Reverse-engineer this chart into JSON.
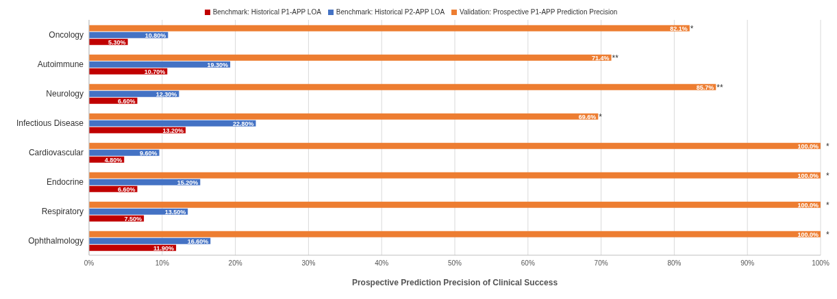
{
  "chart_data": {
    "type": "bar",
    "orientation": "horizontal",
    "xlabel": "Prospective Prediction Precision of Clinical Success",
    "categories": [
      "Oncology",
      "Autoimmune",
      "Neurology",
      "Infectious Disease",
      "Cardiovascular",
      "Endocrine",
      "Respiratory",
      "Ophthalmology"
    ],
    "series": [
      {
        "name": "Validation: Prospective P1-APP Prediction Precision",
        "color": "#ed7d31",
        "values": [
          82.1,
          71.4,
          85.7,
          69.6,
          100,
          100,
          100,
          100
        ],
        "value_labels": [
          "82.1%",
          "71.4%",
          "85.7%",
          "69.6%",
          "100.0%",
          "100.0%",
          "100.0%",
          "100.0%"
        ]
      },
      {
        "name": "Benchmark: Historical P2-APP LOA",
        "color": "#4472c4",
        "values": [
          10.8,
          19.3,
          12.3,
          22.8,
          9.6,
          15.2,
          13.5,
          16.6
        ],
        "value_labels": [
          "10.80%",
          "19.30%",
          "12.30%",
          "22.80%",
          "9.60%",
          "15.20%",
          "13.50%",
          "16.60%"
        ]
      },
      {
        "name": "Benchmark: Historical P1-APP LOA",
        "color": "#c00000",
        "values": [
          5.3,
          10.7,
          6.6,
          13.2,
          4.8,
          6.6,
          7.5,
          11.9
        ],
        "value_labels": [
          "5.30%",
          "10.70%",
          "6.60%",
          "13.20%",
          "4.80%",
          "6.60%",
          "7.50%",
          "11.90%"
        ]
      }
    ],
    "xlim": [
      0,
      100
    ],
    "xticks": [
      {
        "value": 0,
        "label": "0%"
      },
      {
        "value": 10,
        "label": "10%"
      },
      {
        "value": 20,
        "label": "20%"
      },
      {
        "value": 30,
        "label": "30%"
      },
      {
        "value": 40,
        "label": "40%"
      },
      {
        "value": 50,
        "label": "50%"
      },
      {
        "value": 60,
        "label": "60%"
      },
      {
        "value": 70,
        "label": "70%"
      },
      {
        "value": 80,
        "label": "80%"
      },
      {
        "value": 90,
        "label": "90%"
      },
      {
        "value": 100,
        "label": "100%"
      }
    ],
    "grid": "x",
    "legend": "top",
    "annotations": [
      "*",
      "**",
      "**",
      "*",
      "*",
      "*",
      "*",
      "*"
    ]
  }
}
